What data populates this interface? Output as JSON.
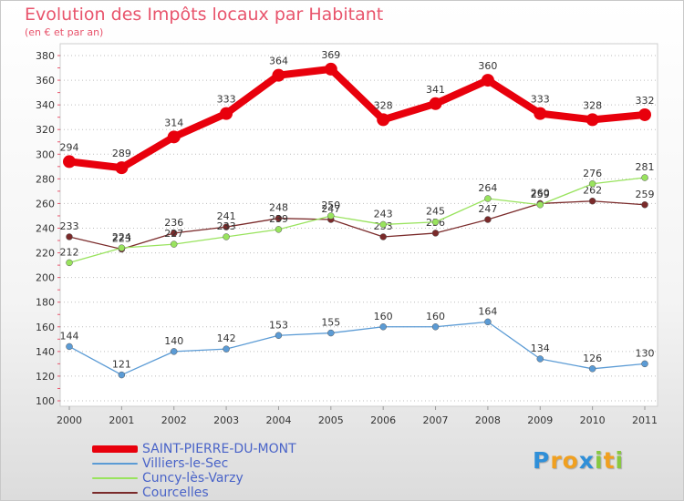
{
  "chart_data": {
    "type": "line",
    "title": "Evolution des Impôts locaux par Habitant",
    "subtitle": "(en € et par an)",
    "categories": [
      "2000",
      "2001",
      "2002",
      "2003",
      "2004",
      "2005",
      "2006",
      "2007",
      "2008",
      "2009",
      "2010",
      "2011"
    ],
    "yticks": [
      "100",
      "120",
      "140",
      "160",
      "180",
      "200",
      "220",
      "240",
      "260",
      "280",
      "300",
      "320",
      "340",
      "360",
      "380"
    ],
    "ylim": [
      100,
      380
    ],
    "grid": "horizontal dotted",
    "series": [
      {
        "name": "SAINT-PIERRE-DU-MONT",
        "color": "#e8000c",
        "values": [
          294,
          289,
          314,
          333,
          364,
          369,
          328,
          341,
          360,
          333,
          328,
          332
        ],
        "labels": [
          "294",
          "289",
          "314",
          "333",
          "364",
          "369",
          "328",
          "341",
          "360",
          "333",
          "328",
          "332"
        ]
      },
      {
        "name": "Villiers-le-Sec",
        "color": "#5b9bd5",
        "values": [
          144,
          121,
          140,
          142,
          153,
          155,
          160,
          160,
          164,
          134,
          126,
          130
        ],
        "labels": [
          "144",
          "121",
          "140",
          "142",
          "153",
          "155",
          "160",
          "160",
          "164",
          "134",
          "126",
          "130"
        ]
      },
      {
        "name": "Cuncy-lès-Varzy",
        "color": "#99e35e",
        "values": [
          212,
          224,
          227,
          233,
          239,
          250,
          243,
          245,
          264,
          259,
          276,
          281
        ],
        "labels": [
          "212",
          "224",
          "227",
          "233",
          "239",
          "250",
          "243",
          "245",
          "264",
          "259",
          "276",
          "281"
        ]
      },
      {
        "name": "Courcelles",
        "color": "#7a2a2a",
        "values": [
          233,
          223,
          236,
          241,
          248,
          247,
          233,
          236,
          247,
          260,
          262,
          259
        ],
        "labels": [
          "233",
          "223",
          "236",
          "241",
          "248",
          "247",
          "233",
          "236",
          "247",
          "260",
          "262",
          "259"
        ]
      }
    ]
  },
  "logo": {
    "letters": [
      "P",
      "r",
      "o",
      "x",
      "i",
      "t",
      "i"
    ],
    "colors": [
      "#2f8fd8",
      "#f0a020",
      "#f0a020",
      "#2f8fd8",
      "#88c840",
      "#f0a020",
      "#88c840"
    ]
  }
}
